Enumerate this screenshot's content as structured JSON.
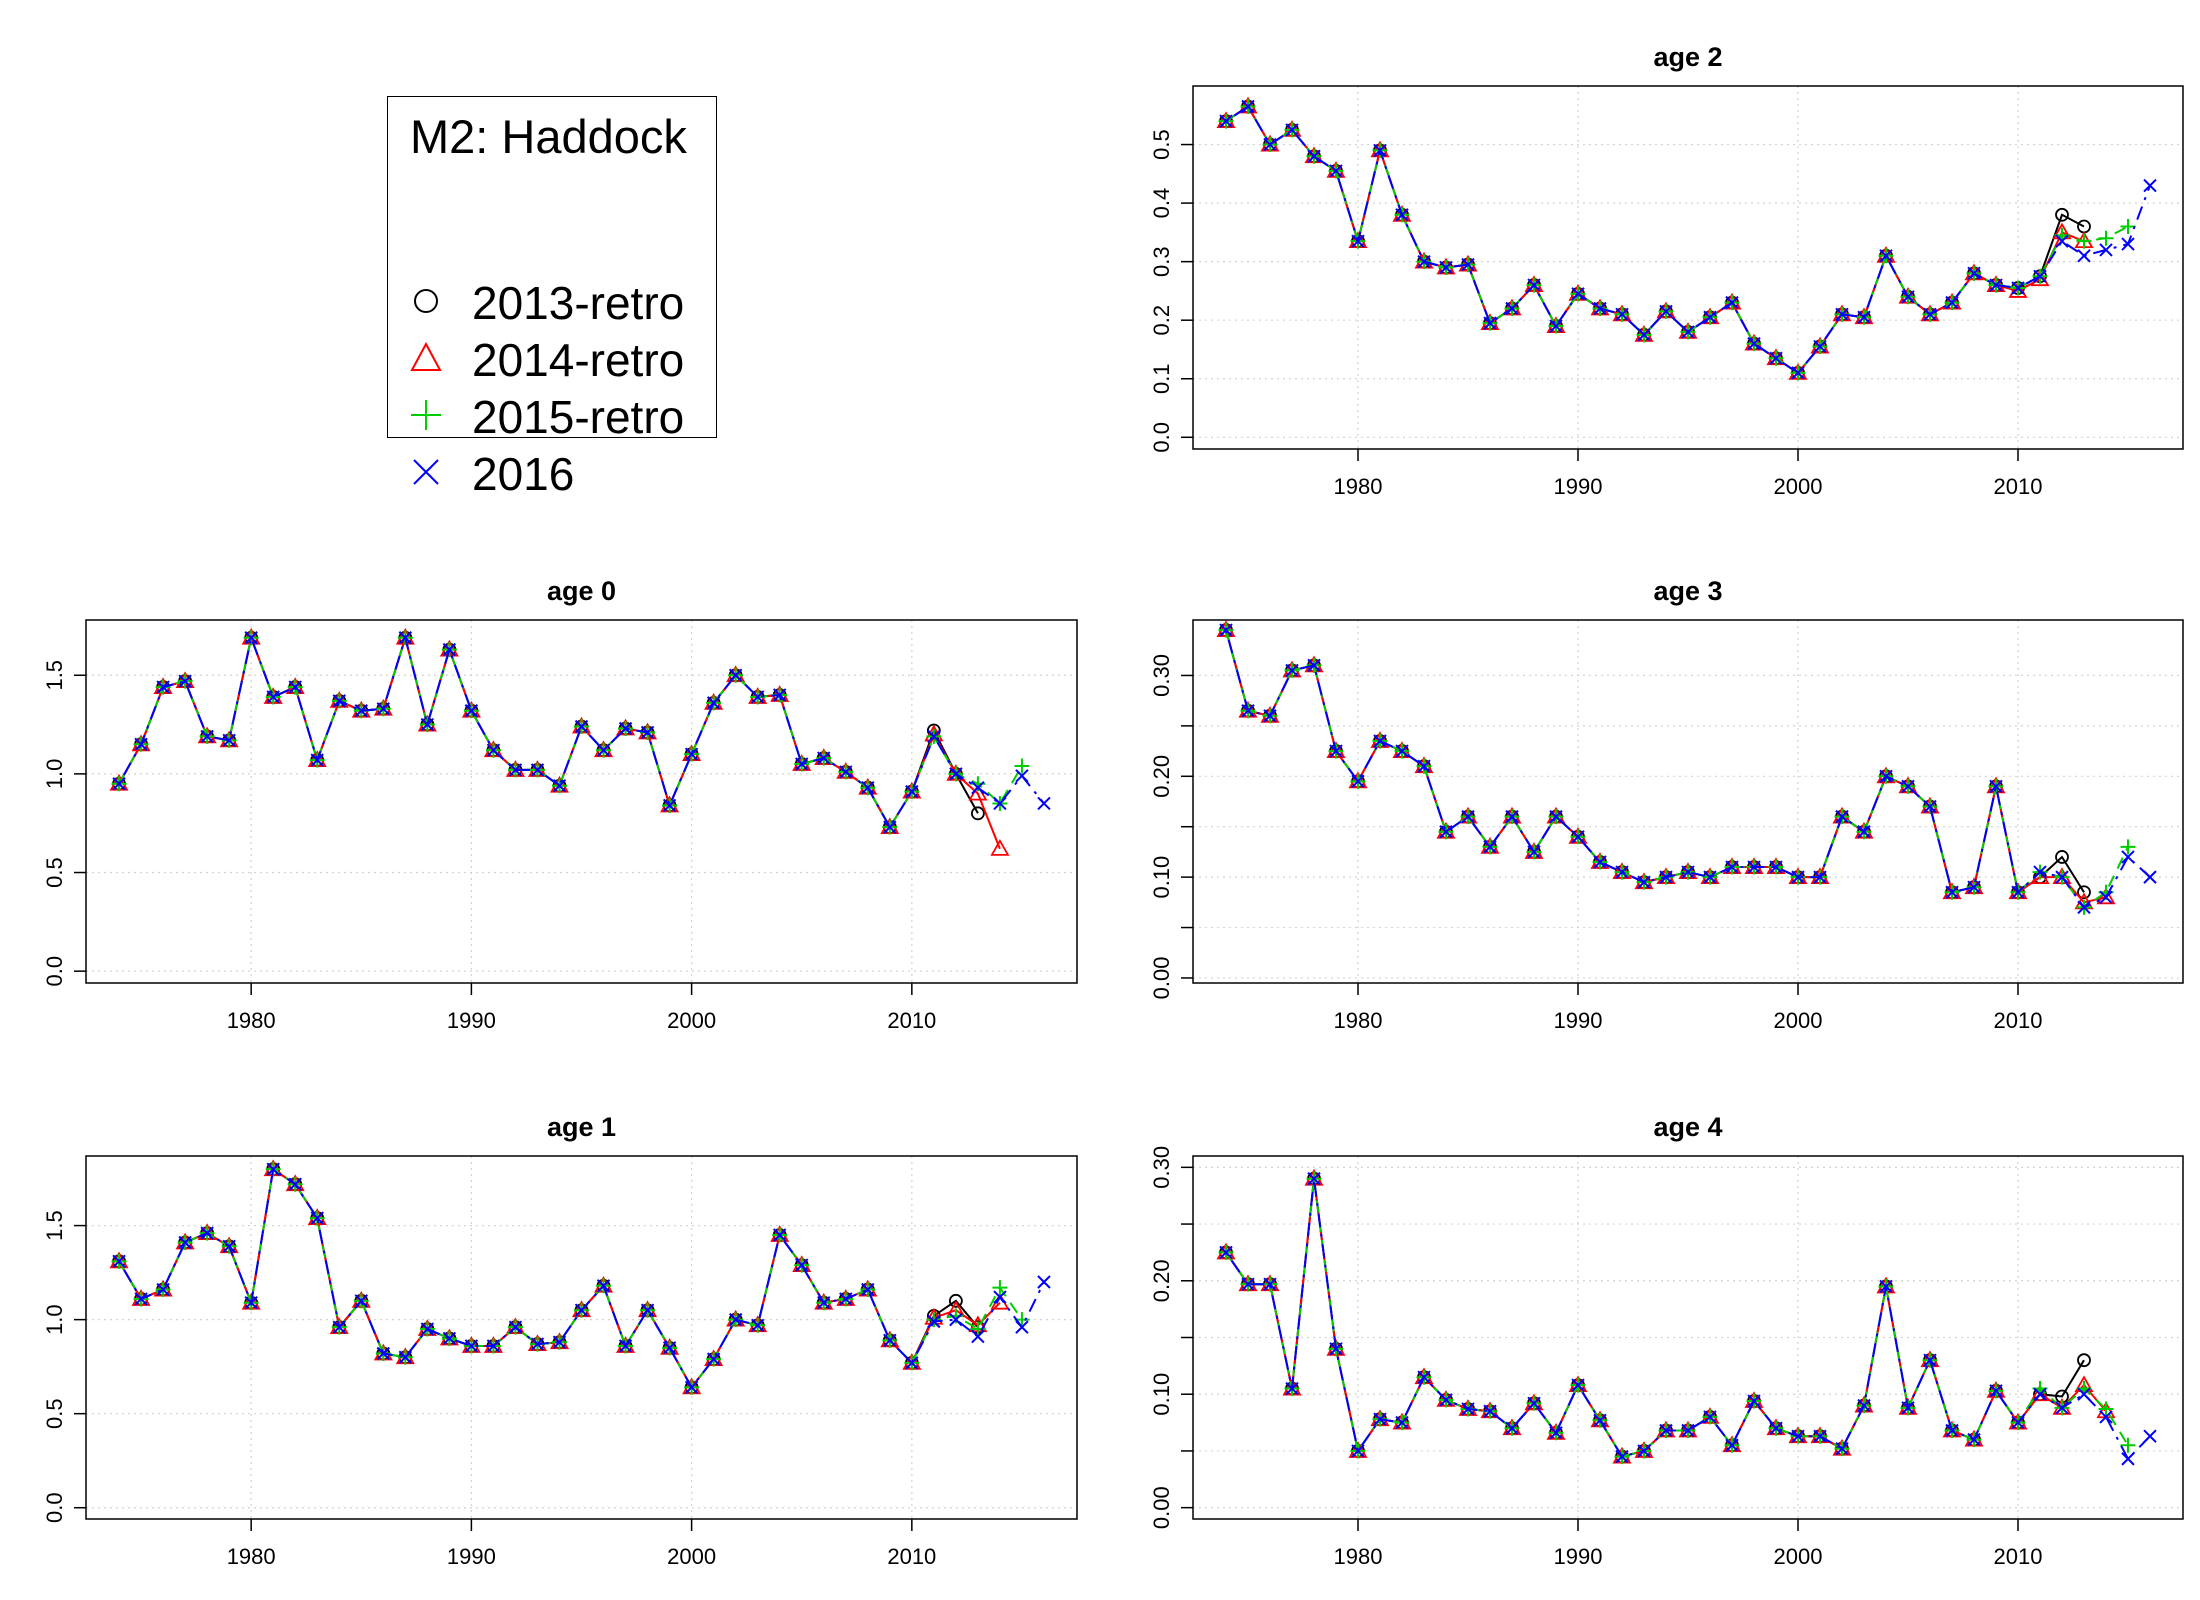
{
  "legend": {
    "title": "M2: Haddock",
    "entries": [
      {
        "label": "2013-retro",
        "color": "#000000",
        "marker": "circle",
        "line": "solid"
      },
      {
        "label": "2014-retro",
        "color": "#ff0000",
        "marker": "triangle",
        "line": "solid"
      },
      {
        "label": "2015-retro",
        "color": "#00cd00",
        "marker": "plus",
        "line": "dashed"
      },
      {
        "label": "2016",
        "color": "#0000ff",
        "marker": "cross",
        "line": "dotdash"
      }
    ]
  },
  "chart_data": [
    {
      "type": "line",
      "title": "age 2",
      "xlabel": "",
      "ylabel": "",
      "xlim": [
        1972.5,
        2017.5
      ],
      "ylim": [
        -0.02,
        0.6
      ],
      "xticks": [
        1980,
        1990,
        2000,
        2010
      ],
      "yticks": [
        0.0,
        0.1,
        0.2,
        0.3,
        0.4,
        0.5
      ],
      "ytick_labels": [
        "0.0",
        "0.1",
        "0.2",
        "0.3",
        "0.4",
        "0.5"
      ],
      "grid": true,
      "base_start": 1974,
      "base": [
        0.54,
        0.565,
        0.5,
        0.525,
        0.48,
        0.455,
        0.335,
        0.49,
        0.38,
        0.3,
        0.29,
        0.295,
        0.195,
        0.22,
        0.26,
        0.19,
        0.245,
        0.22,
        0.21,
        0.175,
        0.215,
        0.18,
        0.205,
        0.23,
        0.16,
        0.135,
        0.11,
        0.155,
        0.21,
        0.205,
        0.31,
        0.24,
        0.21,
        0.23,
        0.28,
        0.26,
        0.255
      ],
      "series": [
        {
          "name": "2013-retro",
          "start": 2011,
          "values": [
            0.275,
            0.38,
            0.36
          ]
        },
        {
          "name": "2014-retro",
          "start": 2010,
          "values": [
            0.25,
            0.27,
            0.35,
            0.335
          ]
        },
        {
          "name": "2015-retro",
          "start": 2011,
          "values": [
            0.275,
            0.345,
            0.335,
            0.34,
            0.36
          ]
        },
        {
          "name": "2016",
          "start": 2011,
          "values": [
            0.275,
            0.335,
            0.31,
            0.32,
            0.33,
            0.43
          ]
        }
      ]
    },
    {
      "type": "line",
      "title": "age 0",
      "xlabel": "",
      "ylabel": "",
      "xlim": [
        1972.5,
        2017.5
      ],
      "ylim": [
        -0.06,
        1.78
      ],
      "xticks": [
        1980,
        1990,
        2000,
        2010
      ],
      "yticks": [
        0.0,
        0.5,
        1.0,
        1.5
      ],
      "ytick_labels": [
        "0.0",
        "0.5",
        "1.0",
        "1.5"
      ],
      "grid": true,
      "base_start": 1974,
      "base": [
        0.95,
        1.15,
        1.44,
        1.47,
        1.19,
        1.17,
        1.69,
        1.39,
        1.44,
        1.07,
        1.37,
        1.32,
        1.33,
        1.69,
        1.25,
        1.63,
        1.32,
        1.12,
        1.02,
        1.02,
        0.94,
        1.24,
        1.12,
        1.23,
        1.21,
        0.84,
        1.1,
        1.36,
        1.5,
        1.39,
        1.4,
        1.05,
        1.08,
        1.01,
        0.93,
        0.73,
        0.91,
        1.2,
        1.0
      ],
      "series": [
        {
          "name": "2013-retro",
          "start": 2011,
          "values": [
            1.22,
            1.0,
            0.8
          ]
        },
        {
          "name": "2014-retro",
          "start": 2011,
          "values": [
            1.2,
            1.0,
            0.9,
            0.62
          ]
        },
        {
          "name": "2015-retro",
          "start": 2011,
          "values": [
            1.19,
            1.0,
            0.95,
            0.85,
            1.04
          ]
        },
        {
          "name": "2016",
          "start": 2011,
          "values": [
            1.19,
            1.0,
            0.93,
            0.85,
            0.99,
            0.85
          ]
        }
      ]
    },
    {
      "type": "line",
      "title": "age 3",
      "xlabel": "",
      "ylabel": "",
      "xlim": [
        1972.5,
        2017.5
      ],
      "ylim": [
        -0.005,
        0.355
      ],
      "xticks": [
        1980,
        1990,
        2000,
        2010
      ],
      "yticks": [
        0.0,
        0.05,
        0.1,
        0.15,
        0.2,
        0.25,
        0.3
      ],
      "ytick_labels": [
        "0.00",
        "",
        "0.10",
        "",
        "0.20",
        "",
        "0.30"
      ],
      "grid": true,
      "base_start": 1974,
      "base": [
        0.345,
        0.265,
        0.26,
        0.305,
        0.31,
        0.225,
        0.195,
        0.235,
        0.225,
        0.21,
        0.145,
        0.16,
        0.13,
        0.16,
        0.125,
        0.16,
        0.14,
        0.115,
        0.105,
        0.095,
        0.1,
        0.105,
        0.1,
        0.11,
        0.11,
        0.11,
        0.1,
        0.1,
        0.16,
        0.145,
        0.2,
        0.19,
        0.17,
        0.085,
        0.09,
        0.19,
        0.085
      ],
      "series": [
        {
          "name": "2013-retro",
          "start": 2011,
          "values": [
            0.1,
            0.12,
            0.085
          ]
        },
        {
          "name": "2014-retro",
          "start": 2011,
          "values": [
            0.1,
            0.1,
            0.075,
            0.08
          ]
        },
        {
          "name": "2015-retro",
          "start": 2011,
          "values": [
            0.105,
            0.1,
            0.07,
            0.085,
            0.13
          ]
        },
        {
          "name": "2016",
          "start": 2011,
          "values": [
            0.105,
            0.1,
            0.07,
            0.08,
            0.12,
            0.1
          ]
        }
      ]
    },
    {
      "type": "line",
      "title": "age 1",
      "xlabel": "",
      "ylabel": "",
      "xlim": [
        1972.5,
        2017.5
      ],
      "ylim": [
        -0.06,
        1.87
      ],
      "xticks": [
        1980,
        1990,
        2000,
        2010
      ],
      "yticks": [
        0.0,
        0.5,
        1.0,
        1.5
      ],
      "ytick_labels": [
        "0.0",
        "0.5",
        "1.0",
        "1.5"
      ],
      "grid": true,
      "base_start": 1974,
      "base": [
        1.31,
        1.11,
        1.16,
        1.41,
        1.46,
        1.39,
        1.09,
        1.8,
        1.72,
        1.54,
        0.96,
        1.1,
        0.82,
        0.8,
        0.95,
        0.9,
        0.86,
        0.86,
        0.96,
        0.87,
        0.88,
        1.05,
        1.18,
        0.86,
        1.05,
        0.85,
        0.64,
        0.79,
        1.0,
        0.97,
        1.45,
        1.29,
        1.09,
        1.11,
        1.16,
        0.89,
        0.77
      ],
      "series": [
        {
          "name": "2013-retro",
          "start": 2011,
          "values": [
            1.02,
            1.1,
            0.96
          ]
        },
        {
          "name": "2014-retro",
          "start": 2011,
          "values": [
            1.01,
            1.05,
            0.97,
            1.09
          ]
        },
        {
          "name": "2015-retro",
          "start": 2011,
          "values": [
            1.0,
            1.02,
            0.95,
            1.17,
            1.0
          ]
        },
        {
          "name": "2016",
          "start": 2011,
          "values": [
            0.99,
            1.0,
            0.91,
            1.12,
            0.96,
            1.2
          ]
        }
      ]
    },
    {
      "type": "line",
      "title": "age 4",
      "xlabel": "",
      "ylabel": "",
      "xlim": [
        1972.5,
        2017.5
      ],
      "ylim": [
        -0.01,
        0.31
      ],
      "xticks": [
        1980,
        1990,
        2000,
        2010
      ],
      "yticks": [
        0.0,
        0.05,
        0.1,
        0.15,
        0.2,
        0.25,
        0.3
      ],
      "ytick_labels": [
        "0.00",
        "",
        "0.10",
        "",
        "0.20",
        "",
        "0.30"
      ],
      "grid": true,
      "base_start": 1974,
      "base": [
        0.225,
        0.197,
        0.197,
        0.105,
        0.29,
        0.14,
        0.05,
        0.078,
        0.075,
        0.115,
        0.095,
        0.087,
        0.085,
        0.07,
        0.092,
        0.066,
        0.108,
        0.077,
        0.045,
        0.05,
        0.068,
        0.068,
        0.08,
        0.055,
        0.094,
        0.07,
        0.063,
        0.063,
        0.052,
        0.09,
        0.195,
        0.088,
        0.13,
        0.068,
        0.06,
        0.103,
        0.075
      ],
      "series": [
        {
          "name": "2013-retro",
          "start": 2011,
          "values": [
            0.1,
            0.098,
            0.13
          ]
        },
        {
          "name": "2014-retro",
          "start": 2011,
          "values": [
            0.1,
            0.088,
            0.108,
            0.085
          ]
        },
        {
          "name": "2015-retro",
          "start": 2011,
          "values": [
            0.105,
            0.088,
            0.105,
            0.087,
            0.055
          ]
        },
        {
          "name": "2016",
          "start": 2011,
          "values": [
            0.1,
            0.088,
            0.1,
            0.08,
            0.043,
            0.063
          ]
        }
      ]
    }
  ]
}
